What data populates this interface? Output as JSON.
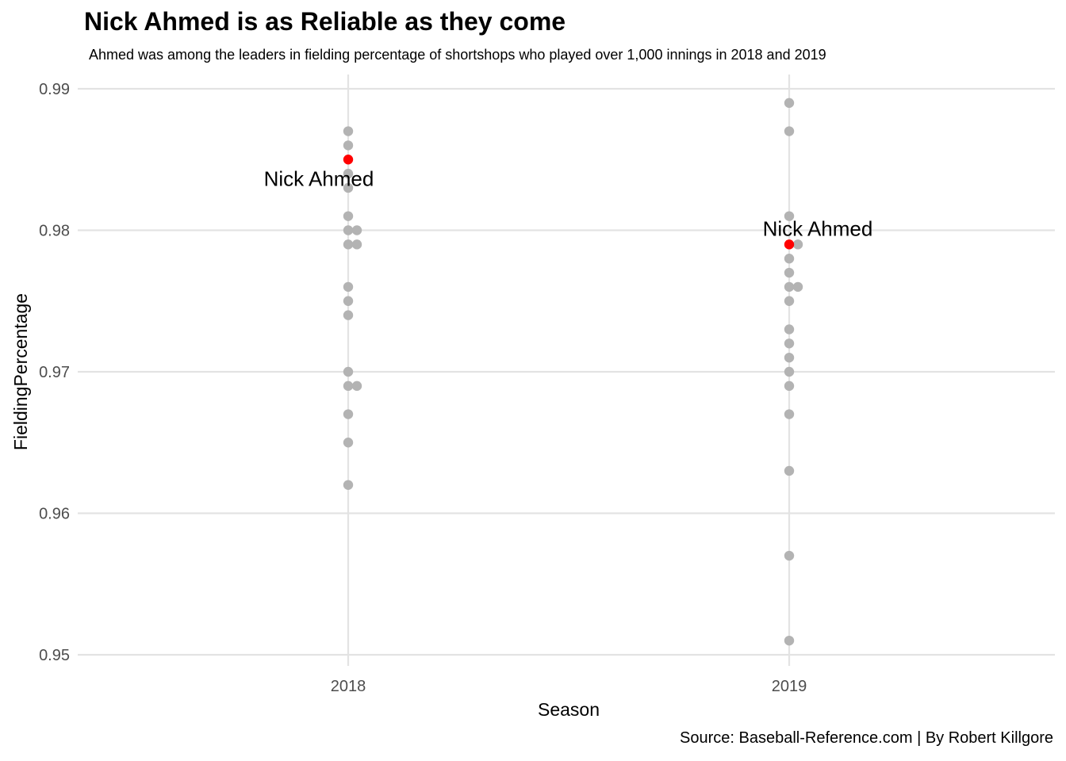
{
  "title": "Nick Ahmed is as Reliable as they come",
  "subtitle": "Ahmed was among the leaders in fielding percentage of shortshops who played over 1,000 innings in 2018 and 2019",
  "caption": "Source: Baseball-Reference.com | By Robert Killgore",
  "chart_data": {
    "type": "scatter",
    "xlabel": "Season",
    "ylabel": "FieldingPercentage",
    "categories": [
      "2018",
      "2019"
    ],
    "ylim": [
      0.95,
      0.99
    ],
    "yticks": [
      0.95,
      0.96,
      0.97,
      0.98,
      0.99
    ],
    "grid": true,
    "legend": "none",
    "point_color": "#b3b3b3",
    "highlight_color": "#ff0000",
    "series": [
      {
        "category": "2018",
        "points": [
          {
            "y": 0.987,
            "jitter": 0
          },
          {
            "y": 0.986,
            "jitter": 0
          },
          {
            "y": 0.985,
            "jitter": 0,
            "highlight": true
          },
          {
            "y": 0.984,
            "jitter": 0
          },
          {
            "y": 0.983,
            "jitter": 0
          },
          {
            "y": 0.981,
            "jitter": 0
          },
          {
            "y": 0.98,
            "jitter": 0
          },
          {
            "y": 0.98,
            "jitter": 1
          },
          {
            "y": 0.979,
            "jitter": 0
          },
          {
            "y": 0.979,
            "jitter": 1
          },
          {
            "y": 0.976,
            "jitter": 0
          },
          {
            "y": 0.975,
            "jitter": 0
          },
          {
            "y": 0.974,
            "jitter": 0
          },
          {
            "y": 0.97,
            "jitter": 0
          },
          {
            "y": 0.969,
            "jitter": 0
          },
          {
            "y": 0.969,
            "jitter": 1
          },
          {
            "y": 0.967,
            "jitter": 0
          },
          {
            "y": 0.965,
            "jitter": 0
          },
          {
            "y": 0.962,
            "jitter": 0
          }
        ]
      },
      {
        "category": "2019",
        "points": [
          {
            "y": 0.989,
            "jitter": 0
          },
          {
            "y": 0.987,
            "jitter": 0
          },
          {
            "y": 0.981,
            "jitter": 0
          },
          {
            "y": 0.979,
            "jitter": 0,
            "highlight": true
          },
          {
            "y": 0.979,
            "jitter": 1
          },
          {
            "y": 0.978,
            "jitter": 0
          },
          {
            "y": 0.977,
            "jitter": 0
          },
          {
            "y": 0.976,
            "jitter": 0
          },
          {
            "y": 0.976,
            "jitter": 1
          },
          {
            "y": 0.975,
            "jitter": 0
          },
          {
            "y": 0.973,
            "jitter": 0
          },
          {
            "y": 0.972,
            "jitter": 0
          },
          {
            "y": 0.971,
            "jitter": 0
          },
          {
            "y": 0.97,
            "jitter": 0
          },
          {
            "y": 0.969,
            "jitter": 0
          },
          {
            "y": 0.967,
            "jitter": 0
          },
          {
            "y": 0.963,
            "jitter": 0
          },
          {
            "y": 0.957,
            "jitter": 0
          },
          {
            "y": 0.951,
            "jitter": 0
          }
        ]
      }
    ],
    "annotations": [
      {
        "text": "Nick Ahmed",
        "category": "2018",
        "y": 0.985,
        "placement": "below"
      },
      {
        "text": "Nick Ahmed",
        "category": "2019",
        "y": 0.979,
        "placement": "above"
      }
    ]
  }
}
